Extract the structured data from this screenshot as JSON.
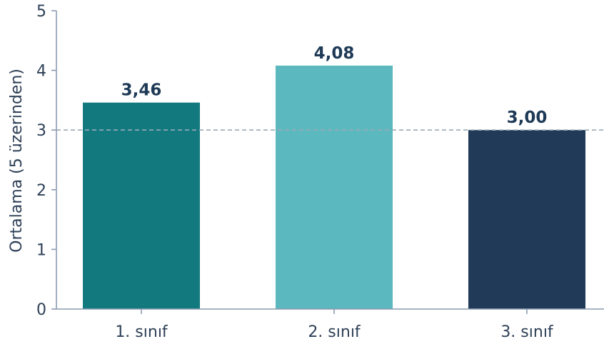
{
  "chart_data": {
    "type": "bar",
    "categories": [
      "1. sınıf",
      "2. sınıf",
      "3. sınıf"
    ],
    "values": [
      3.46,
      4.08,
      3.0
    ],
    "value_labels": [
      "3,46",
      "4,08",
      "3,00"
    ],
    "bar_colors": [
      "#127a7e",
      "#5cb8bf",
      "#213a57"
    ],
    "ylabel": "Ortalama (5 üzerinden)",
    "xlabel": "",
    "ylim": [
      0,
      5
    ],
    "yticks": [
      0,
      1,
      2,
      3,
      4,
      5
    ],
    "ytick_labels": [
      "0",
      "1",
      "2",
      "3",
      "4",
      "5"
    ],
    "reference_line": {
      "y": 3,
      "style": "dashed",
      "color": "#9aa9b8"
    },
    "grid": false,
    "axis_color": "#8a9bb0",
    "text_color": "#2e4057"
  }
}
